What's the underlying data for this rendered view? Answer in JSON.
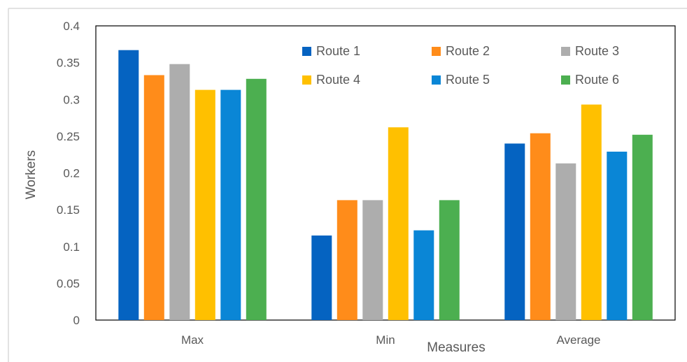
{
  "chart_data": {
    "type": "bar",
    "title": "",
    "xlabel": "Measures",
    "ylabel": "Workers",
    "ylim": [
      0,
      0.4
    ],
    "yticks": [
      "0",
      "0.05",
      "0.1",
      "0.15",
      "0.2",
      "0.25",
      "0.3",
      "0.35",
      "0.4"
    ],
    "categories": [
      "Max",
      "Min",
      "Average"
    ],
    "grid": false,
    "legend_position": "top-right",
    "series": [
      {
        "name": "Route 1",
        "color": "#0563C1",
        "values": [
          0.367,
          0.115,
          0.24
        ]
      },
      {
        "name": "Route 2",
        "color": "#FF8C1A",
        "values": [
          0.333,
          0.163,
          0.254
        ]
      },
      {
        "name": "Route 3",
        "color": "#ADADAD",
        "values": [
          0.348,
          0.163,
          0.213
        ]
      },
      {
        "name": "Route 4",
        "color": "#FFC000",
        "values": [
          0.313,
          0.262,
          0.293
        ]
      },
      {
        "name": "Route 5",
        "color": "#0A86D6",
        "values": [
          0.313,
          0.122,
          0.229
        ]
      },
      {
        "name": "Route 6",
        "color": "#4CAF50",
        "values": [
          0.328,
          0.163,
          0.252
        ]
      }
    ]
  }
}
